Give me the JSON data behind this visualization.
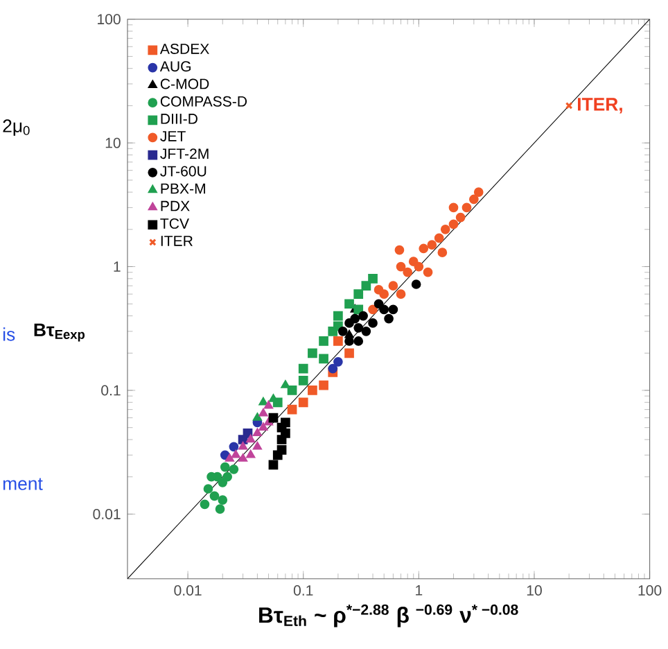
{
  "chart_data": {
    "type": "scatter",
    "xlabel": "Bτ$_{Eth}$ ~ ρ$^{*−2.88}$ β $^{−0.69}$ ν$^{* −0.08}$",
    "ylabel": "Bτ$_{Eexp}$",
    "log": "xy",
    "xlim": [
      0.003,
      100
    ],
    "ylim": [
      0.003,
      100
    ],
    "xticks": [
      0.01,
      0.1,
      1,
      10,
      100
    ],
    "yticks": [
      0.01,
      0.1,
      1,
      10,
      100
    ],
    "legend": "top left",
    "annotations": [
      "2μ$_{0}$",
      "is",
      "ment",
      {
        "text": "ITER,",
        "x": 20,
        "y": 20
      }
    ],
    "series": [
      {
        "name": "ASDEX",
        "color": "#f05a28",
        "marker": "square",
        "x": [
          0.1,
          0.12,
          0.15,
          0.18,
          0.25,
          0.08,
          0.2
        ],
        "values": [
          0.08,
          0.1,
          0.11,
          0.14,
          0.2,
          0.07,
          0.25
        ]
      },
      {
        "name": "AUG",
        "color": "#2a35a8",
        "marker": "circle",
        "x": [
          0.025,
          0.021,
          0.04,
          0.2,
          0.18
        ],
        "values": [
          0.035,
          0.03,
          0.055,
          0.17,
          0.15
        ]
      },
      {
        "name": "C-MOD",
        "color": "#000000",
        "marker": "triangle",
        "x": [
          0.25,
          0.28
        ],
        "values": [
          0.28,
          0.45
        ]
      },
      {
        "name": "COMPASS-D",
        "color": "#20a050",
        "marker": "circle",
        "x": [
          0.014,
          0.015,
          0.017,
          0.018,
          0.02,
          0.021,
          0.016,
          0.019,
          0.02,
          0.025,
          0.022
        ],
        "values": [
          0.012,
          0.016,
          0.014,
          0.02,
          0.018,
          0.024,
          0.02,
          0.011,
          0.013,
          0.023,
          0.02
        ]
      },
      {
        "name": "DIII-D",
        "color": "#20a050",
        "marker": "square",
        "x": [
          0.06,
          0.08,
          0.1,
          0.12,
          0.15,
          0.18,
          0.2,
          0.25,
          0.3,
          0.35,
          0.4,
          0.1,
          0.15,
          0.2,
          0.3
        ],
        "values": [
          0.08,
          0.1,
          0.15,
          0.2,
          0.25,
          0.3,
          0.4,
          0.5,
          0.6,
          0.7,
          0.8,
          0.12,
          0.18,
          0.33,
          0.45
        ]
      },
      {
        "name": "JET",
        "color": "#f05a28",
        "marker": "circle",
        "x": [
          0.4,
          0.5,
          0.6,
          0.7,
          0.8,
          0.9,
          1.0,
          1.1,
          1.3,
          1.5,
          1.7,
          2.0,
          2.3,
          2.6,
          3.0,
          3.3,
          1.2,
          0.7,
          2.0,
          1.6,
          0.45,
          0.68
        ],
        "values": [
          0.45,
          0.6,
          0.7,
          0.6,
          0.9,
          1.1,
          1.0,
          1.4,
          1.5,
          1.7,
          2.0,
          2.2,
          2.5,
          3.0,
          3.5,
          4.0,
          0.9,
          1.0,
          3.0,
          1.3,
          0.65,
          1.36
        ]
      },
      {
        "name": "JFT-2M",
        "color": "#2a2a90",
        "marker": "square",
        "x": [
          0.03,
          0.033
        ],
        "values": [
          0.04,
          0.045
        ]
      },
      {
        "name": "JT-60U",
        "color": "#000000",
        "marker": "circle",
        "x": [
          0.22,
          0.25,
          0.28,
          0.3,
          0.33,
          0.35,
          0.4,
          0.25,
          0.3,
          0.5,
          0.45,
          0.95,
          0.55,
          0.6
        ],
        "values": [
          0.3,
          0.35,
          0.38,
          0.25,
          0.4,
          0.3,
          0.35,
          0.25,
          0.32,
          0.45,
          0.5,
          0.72,
          0.38,
          0.45
        ]
      },
      {
        "name": "PBX-M",
        "color": "#20a050",
        "marker": "triangle",
        "x": [
          0.04,
          0.045,
          0.055,
          0.07
        ],
        "values": [
          0.06,
          0.08,
          0.085,
          0.11
        ]
      },
      {
        "name": "PDX",
        "color": "#c0449a",
        "marker": "triangle",
        "x": [
          0.023,
          0.026,
          0.03,
          0.035,
          0.04,
          0.045,
          0.05,
          0.035,
          0.04,
          0.03,
          0.045,
          0.05
        ],
        "values": [
          0.028,
          0.03,
          0.035,
          0.04,
          0.045,
          0.05,
          0.055,
          0.03,
          0.035,
          0.028,
          0.065,
          0.075
        ]
      },
      {
        "name": "TCV",
        "color": "#000000",
        "marker": "square",
        "x": [
          0.055,
          0.06,
          0.065,
          0.065,
          0.07,
          0.065,
          0.07,
          0.055
        ],
        "values": [
          0.025,
          0.03,
          0.033,
          0.04,
          0.045,
          0.05,
          0.055,
          0.06
        ]
      },
      {
        "name": "ITER",
        "color": "#f05a28",
        "marker": "cross",
        "x": [
          20
        ],
        "values": [
          20
        ]
      },
      {
        "type": "line",
        "color": "#000000",
        "x": [
          0.003,
          100
        ],
        "values": [
          0.003,
          100
        ]
      }
    ]
  }
}
